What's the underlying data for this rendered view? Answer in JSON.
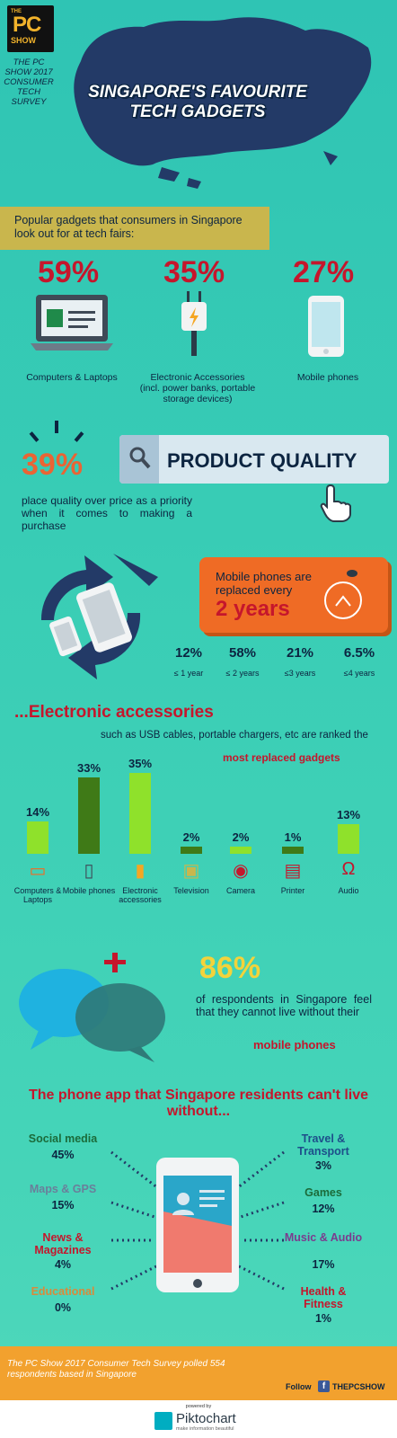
{
  "header": {
    "logo": {
      "the": "THE",
      "pc": "PC",
      "show": "SHOW"
    },
    "survey_note": "THE PC SHOW 2017 CONSUMER TECH SURVEY",
    "title_line1": "SINGAPORE'S FAVOURITE",
    "title_line2": "TECH GADGETS"
  },
  "popular": {
    "intro": "Popular gadgets that consumers in Singapore look out for at tech fairs:",
    "items": [
      {
        "pct": "59%",
        "label": "Computers & Laptops",
        "sub": "",
        "icon": "laptop-icon"
      },
      {
        "pct": "35%",
        "label": "Electronic Accessories",
        "sub": "(incl. power banks, portable storage devices)",
        "icon": "plug-icon"
      },
      {
        "pct": "27%",
        "label": "Mobile phones",
        "sub": "",
        "icon": "mobile-phone-icon"
      }
    ]
  },
  "quality": {
    "pct": "39%",
    "text": "place quality over price as a priority when it comes to making a purchase",
    "search_text": "PRODUCT QUALITY"
  },
  "replacement": {
    "line1": "Mobile phones are replaced every",
    "line2": "2 years",
    "stats": [
      {
        "value": "12%",
        "label": "≤ 1 year"
      },
      {
        "value": "58%",
        "label": "≤ 2 years"
      },
      {
        "value": "21%",
        "label": "≤3 years"
      },
      {
        "value": "6.5%",
        "label": "≤4 years"
      }
    ]
  },
  "accessories": {
    "title": "...Electronic accessories",
    "sub": "such as USB cables, portable chargers, etc are ranked the",
    "sub_bold": "most replaced gadgets"
  },
  "chart_data": {
    "type": "bar",
    "categories": [
      "Computers & Laptops",
      "Mobile phones",
      "Electronic accessories",
      "Television",
      "Camera",
      "Printer",
      "Audio"
    ],
    "values": [
      14,
      33,
      35,
      2,
      2,
      1,
      13
    ],
    "value_labels": [
      "14%",
      "33%",
      "35%",
      "2%",
      "2%",
      "1%",
      "13%"
    ],
    "colors": [
      "#8fe12b",
      "#3f7a17",
      "#8fe12b",
      "#3f7a17",
      "#8fe12b",
      "#3f7a17",
      "#8fe12b"
    ],
    "icons": [
      "monitor-icon",
      "phone-icon",
      "usb-icon",
      "tv-icon",
      "camera-icon",
      "printer-icon",
      "headphones-icon"
    ]
  },
  "phones_stat": {
    "pct": "86%",
    "text": "of respondents in Singapore feel that they cannot live without their",
    "bold": "mobile phones"
  },
  "apps": {
    "title": "The phone app that Singapore residents can't live without...",
    "left": [
      {
        "name": "Social media",
        "value": "45%",
        "color": "#1b6b3a"
      },
      {
        "name": "Maps & GPS",
        "value": "15%",
        "color": "#6a7f9a"
      },
      {
        "name": "News & Magazines",
        "value": "4%",
        "color": "#c5162c"
      },
      {
        "name": "Educational",
        "value": "0%",
        "color": "#d98a3a"
      }
    ],
    "right": [
      {
        "name": "Travel & Transport",
        "value": "3%",
        "color": "#1d4f8a"
      },
      {
        "name": "Games",
        "value": "12%",
        "color": "#1b6b3a"
      },
      {
        "name": "Music & Audio",
        "value": "17%",
        "color": "#7b3b8e"
      },
      {
        "name": "Health & Fitness",
        "value": "1%",
        "color": "#c5162c"
      }
    ]
  },
  "footer": {
    "text": "The PC Show 2017 Consumer Tech Survey polled 554 respondents based in Singapore",
    "follow": "Follow",
    "fb_icon": "f",
    "handle": "THEPCSHOW",
    "powered": "powered by",
    "brand": "Piktochart",
    "tagline": "make information beautiful"
  }
}
